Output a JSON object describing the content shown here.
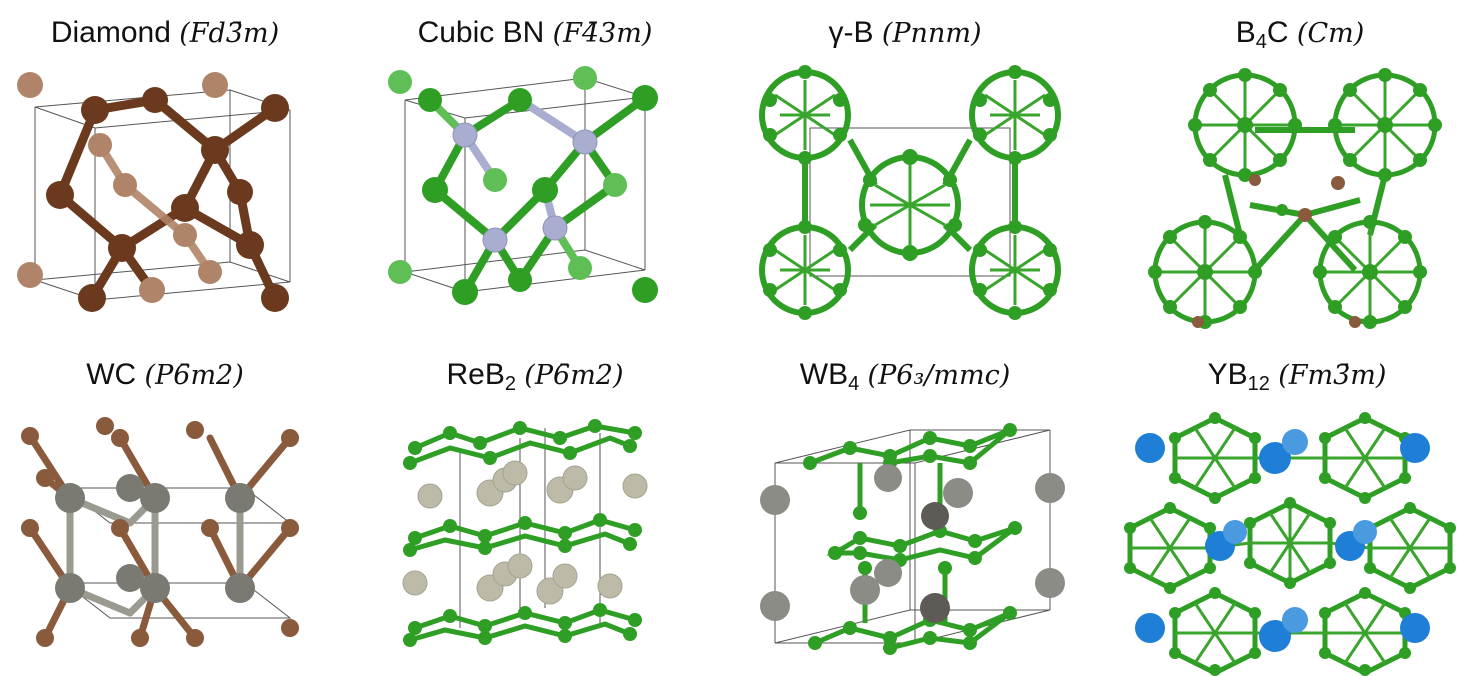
{
  "colors": {
    "carbon_dark": "#6b3a1e",
    "carbon_light": "#b08468",
    "boron_green": "#2f9e25",
    "nitrogen": "#a9aed0",
    "tungsten_gray": "#7a7a72",
    "rhenium": "#bdbba8",
    "yttrium_blue": "#1f7fd6",
    "bond_green": "#3aa52c"
  },
  "panels": [
    {
      "name": "Diamond",
      "sub": "",
      "name_after": "",
      "space_group": "Fd3̄m"
    },
    {
      "name": "Cubic BN",
      "sub": "",
      "name_after": "",
      "space_group": "F4̄3m"
    },
    {
      "name": "γ-B",
      "sub": "",
      "name_after": "",
      "space_group": "Pnnm"
    },
    {
      "name": "B",
      "sub": "4",
      "name_after": "C",
      "space_group": "Cm"
    },
    {
      "name": "WC",
      "sub": "",
      "name_after": "",
      "space_group": "P6̄m2"
    },
    {
      "name": "ReB",
      "sub": "2",
      "name_after": "",
      "space_group": "P6̄m2"
    },
    {
      "name": "WB",
      "sub": "4",
      "name_after": "",
      "space_group": "P6₃/mmc"
    },
    {
      "name": "YB",
      "sub": "12",
      "name_after": "",
      "space_group": "Fm3̄m"
    }
  ]
}
